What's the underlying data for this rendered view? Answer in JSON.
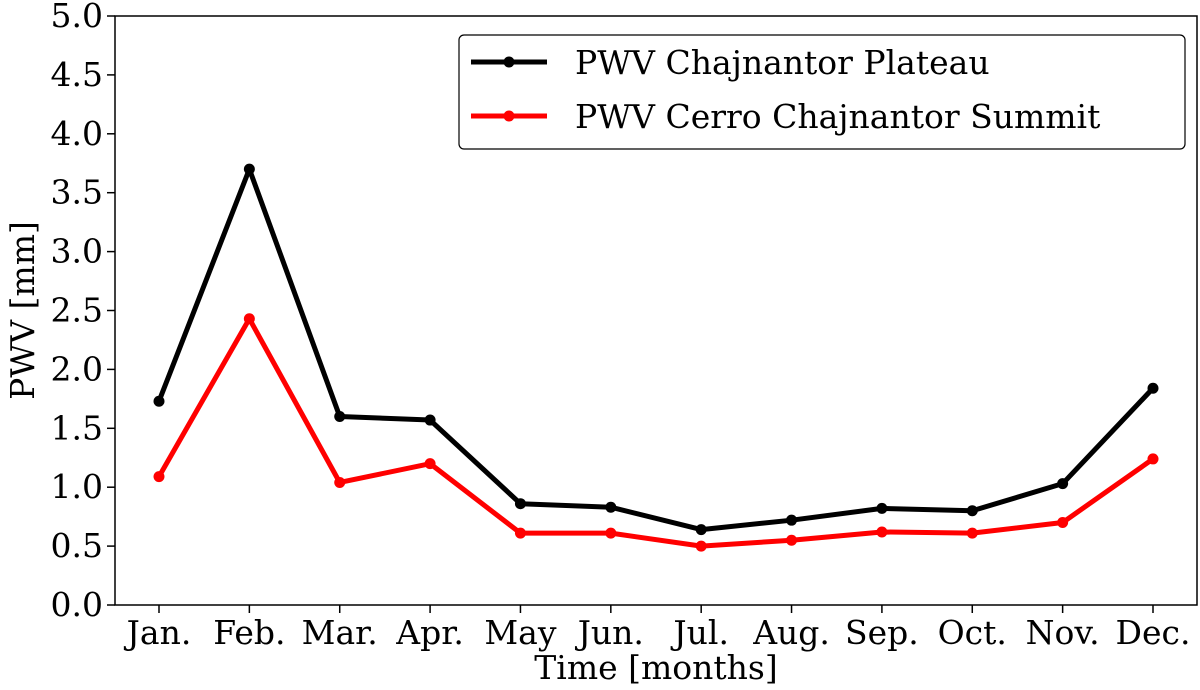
{
  "chart_data": {
    "type": "line",
    "title": "",
    "xlabel": "Time [months]",
    "ylabel": "PWV [mm]",
    "categories": [
      "Jan.",
      "Feb.",
      "Mar.",
      "Apr.",
      "May",
      "Jun.",
      "Jul.",
      "Aug.",
      "Sep.",
      "Oct.",
      "Nov.",
      "Dec."
    ],
    "ylim": [
      0,
      5
    ],
    "yticks": [
      "0.0",
      "0.5",
      "1.0",
      "1.5",
      "2.0",
      "2.5",
      "3.0",
      "3.5",
      "4.0",
      "4.5",
      "5.0"
    ],
    "grid": false,
    "legend_position": "top-right",
    "series": [
      {
        "name": "PWV Chajnantor Plateau",
        "color": "#000000",
        "values": [
          1.73,
          3.7,
          1.6,
          1.57,
          0.86,
          0.83,
          0.64,
          0.72,
          0.82,
          0.8,
          1.03,
          1.84
        ]
      },
      {
        "name": "PWV Cerro Chajnantor Summit",
        "color": "#ff0000",
        "values": [
          1.09,
          2.43,
          1.04,
          1.2,
          0.61,
          0.61,
          0.5,
          0.55,
          0.62,
          0.61,
          0.7,
          1.24
        ]
      }
    ]
  }
}
